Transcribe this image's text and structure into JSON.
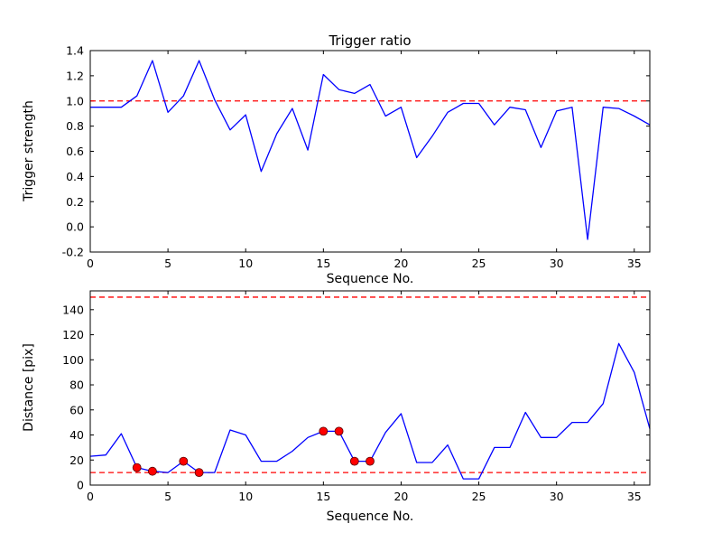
{
  "figure": {
    "background": "#ffffff",
    "line_color": "#0000ff",
    "threshold_color": "#ff0000",
    "marker_color": "#ff0000",
    "axis_color": "#000000"
  },
  "chart_data": [
    {
      "type": "line",
      "title": "Trigger ratio",
      "xlabel": "Sequence No.",
      "ylabel": "Trigger strength",
      "xlim": [
        0,
        36
      ],
      "ylim": [
        -0.2,
        1.4
      ],
      "grid": false,
      "legend": "none",
      "xticks": [
        0,
        5,
        10,
        15,
        20,
        25,
        30,
        35
      ],
      "xticklabels": [
        "0",
        "5",
        "10",
        "15",
        "20",
        "25",
        "30",
        "35"
      ],
      "yticks": [
        -0.2,
        0.0,
        0.2,
        0.4,
        0.6,
        0.8,
        1.0,
        1.2,
        1.4
      ],
      "yticklabels": [
        "-0.2",
        "0.0",
        "0.2",
        "0.4",
        "0.6",
        "0.8",
        "1.0",
        "1.2",
        "1.4"
      ],
      "thresholds": [
        1.0
      ],
      "x": [
        0,
        1,
        2,
        3,
        4,
        5,
        6,
        7,
        8,
        9,
        10,
        11,
        12,
        13,
        14,
        15,
        16,
        17,
        18,
        19,
        20,
        21,
        22,
        23,
        24,
        25,
        26,
        27,
        28,
        29,
        30,
        31,
        32,
        33,
        34,
        35,
        36
      ],
      "y": [
        0.95,
        0.95,
        0.95,
        1.04,
        1.32,
        0.91,
        1.04,
        1.32,
        1.01,
        0.77,
        0.89,
        0.44,
        0.74,
        0.94,
        0.61,
        1.21,
        1.09,
        1.06,
        1.13,
        0.88,
        0.95,
        0.55,
        0.72,
        0.91,
        0.98,
        0.98,
        0.81,
        0.95,
        0.93,
        0.63,
        0.92,
        0.95,
        -0.1,
        0.95,
        0.94,
        0.88,
        0.81
      ],
      "marker_indices": []
    },
    {
      "type": "line",
      "title": "",
      "xlabel": "Sequence No.",
      "ylabel": "Distance [pix]",
      "xlim": [
        0,
        36
      ],
      "ylim": [
        0,
        155
      ],
      "grid": false,
      "legend": "none",
      "xticks": [
        0,
        5,
        10,
        15,
        20,
        25,
        30,
        35
      ],
      "xticklabels": [
        "0",
        "5",
        "10",
        "15",
        "20",
        "25",
        "30",
        "35"
      ],
      "yticks": [
        0,
        20,
        40,
        60,
        80,
        100,
        120,
        140
      ],
      "yticklabels": [
        "0",
        "20",
        "40",
        "60",
        "80",
        "100",
        "120",
        "140"
      ],
      "thresholds": [
        150,
        10
      ],
      "x": [
        0,
        1,
        2,
        3,
        4,
        5,
        6,
        7,
        8,
        9,
        10,
        11,
        12,
        13,
        14,
        15,
        16,
        17,
        18,
        19,
        20,
        21,
        22,
        23,
        24,
        25,
        26,
        27,
        28,
        29,
        30,
        31,
        32,
        33,
        34,
        35,
        36
      ],
      "y": [
        23,
        24,
        41,
        14,
        11,
        10,
        19,
        10,
        10,
        44,
        40,
        19,
        19,
        27,
        38,
        43,
        43,
        19,
        19,
        42,
        57,
        18,
        18,
        32,
        5,
        5,
        30,
        30,
        58,
        38,
        38,
        50,
        50,
        65,
        113,
        90,
        45
      ],
      "marker_indices": [
        3,
        4,
        6,
        7,
        15,
        16,
        17,
        18
      ]
    }
  ]
}
